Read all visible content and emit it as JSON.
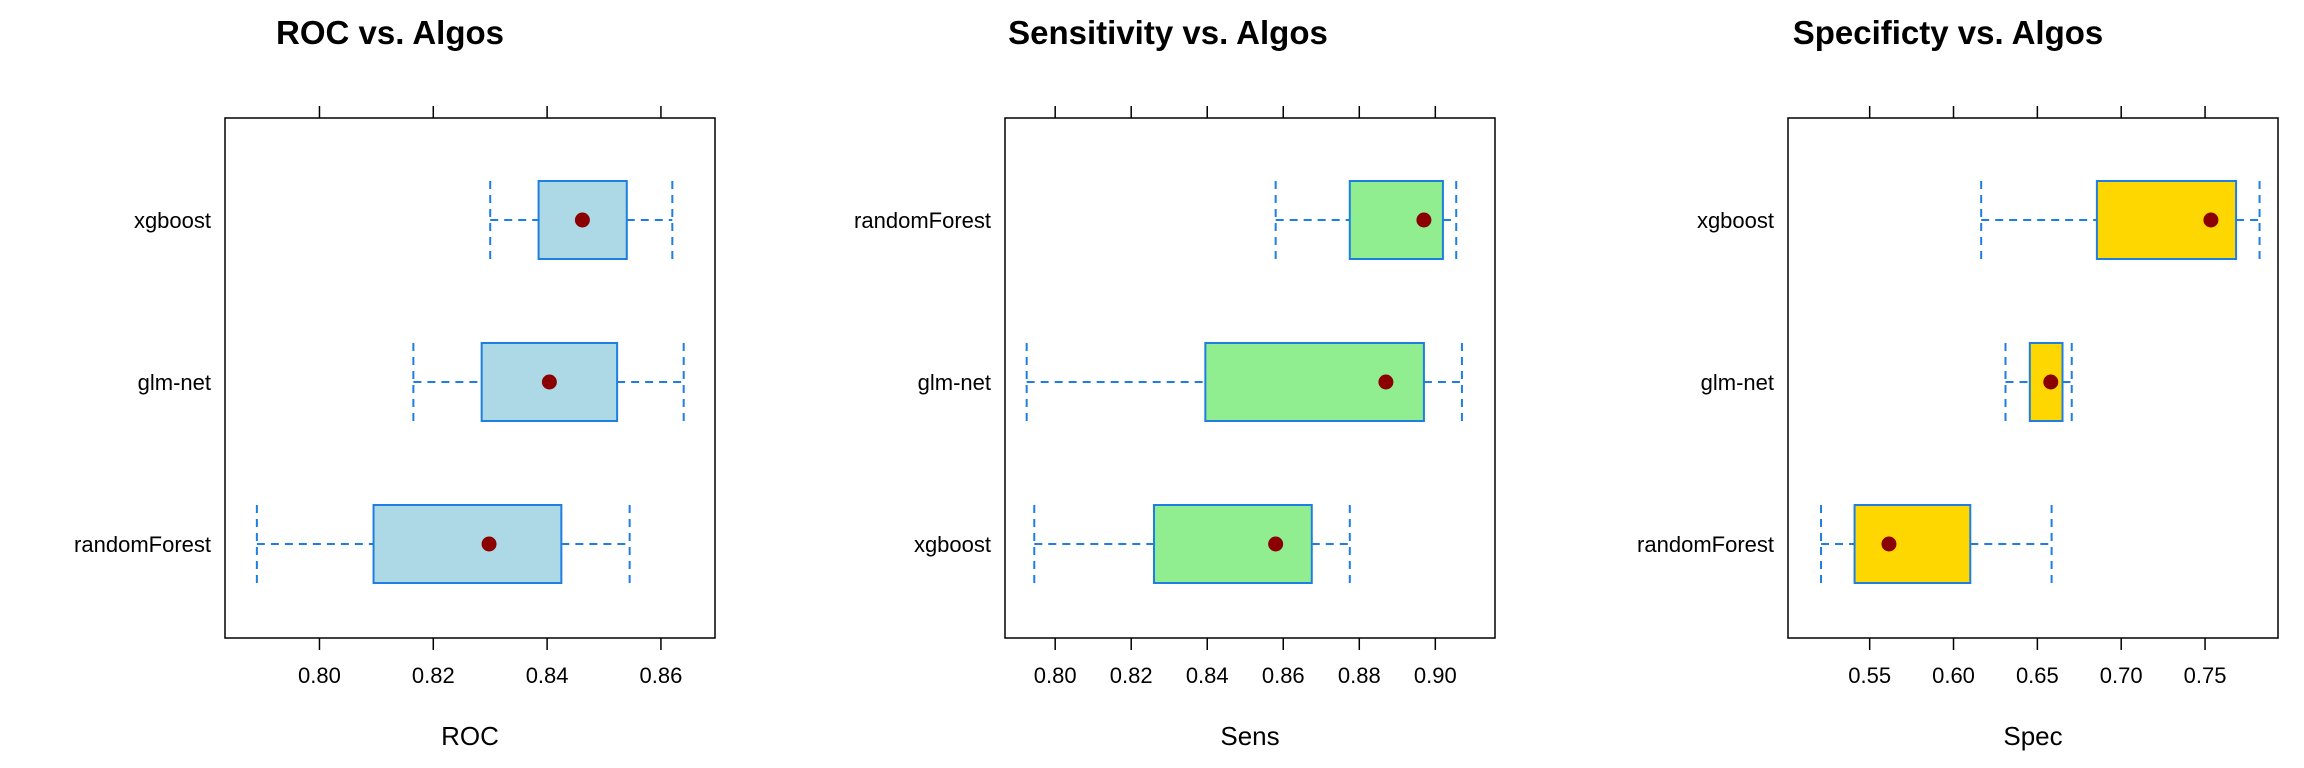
{
  "chart_data": [
    {
      "type": "box",
      "title": "ROC vs. Algos",
      "xlabel": "ROC",
      "ylabel": "",
      "xlim": [
        0.7834,
        0.8695
      ],
      "ticks": [
        0.8,
        0.82,
        0.84,
        0.86
      ],
      "tick_labels": [
        "0.80",
        "0.82",
        "0.84",
        "0.86"
      ],
      "grid": false,
      "box_color": "#ADD8E6",
      "series": [
        {
          "name": "xgboost",
          "whisker_min": 0.83,
          "q1": 0.8385,
          "median": 0.8462,
          "q3": 0.854,
          "whisker_max": 0.862
        },
        {
          "name": "glm-net",
          "whisker_min": 0.8165,
          "q1": 0.8285,
          "median": 0.8404,
          "q3": 0.8523,
          "whisker_max": 0.864
        },
        {
          "name": "randomForest",
          "whisker_min": 0.789,
          "q1": 0.8095,
          "median": 0.8298,
          "q3": 0.8425,
          "whisker_max": 0.8545
        }
      ]
    },
    {
      "type": "box",
      "title": "Sensitivity vs. Algos",
      "xlabel": "Sens",
      "ylabel": "",
      "xlim": [
        0.7868,
        0.9157
      ],
      "ticks": [
        0.8,
        0.82,
        0.84,
        0.86,
        0.88,
        0.9
      ],
      "tick_labels": [
        "0.80",
        "0.82",
        "0.84",
        "0.86",
        "0.88",
        "0.90"
      ],
      "grid": false,
      "box_color": "#90EE90",
      "series": [
        {
          "name": "randomForest",
          "whisker_min": 0.858,
          "q1": 0.8775,
          "median": 0.897,
          "q3": 0.902,
          "whisker_max": 0.9055
        },
        {
          "name": "glm-net",
          "whisker_min": 0.7925,
          "q1": 0.8395,
          "median": 0.887,
          "q3": 0.897,
          "whisker_max": 0.907
        },
        {
          "name": "xgboost",
          "whisker_min": 0.7945,
          "q1": 0.826,
          "median": 0.858,
          "q3": 0.8675,
          "whisker_max": 0.8775
        }
      ]
    },
    {
      "type": "box",
      "title": "Specificty vs. Algos",
      "xlabel": "Spec",
      "ylabel": "",
      "xlim": [
        0.5013,
        0.7935
      ],
      "ticks": [
        0.55,
        0.6,
        0.65,
        0.7,
        0.75
      ],
      "tick_labels": [
        "0.55",
        "0.60",
        "0.65",
        "0.70",
        "0.75"
      ],
      "grid": false,
      "box_color": "#FFD700",
      "series": [
        {
          "name": "xgboost",
          "whisker_min": 0.6165,
          "q1": 0.6855,
          "median": 0.7535,
          "q3": 0.7685,
          "whisker_max": 0.7825
        },
        {
          "name": "glm-net",
          "whisker_min": 0.631,
          "q1": 0.6455,
          "median": 0.658,
          "q3": 0.665,
          "whisker_max": 0.6705
        },
        {
          "name": "randomForest",
          "whisker_min": 0.521,
          "q1": 0.541,
          "median": 0.5615,
          "q3": 0.61,
          "whisker_max": 0.6585
        }
      ]
    }
  ],
  "colors": {
    "box_border": "#1E7FE0",
    "whisker": "#1E7FE0",
    "median_dot": "#8B0000",
    "frame": "#000000"
  }
}
